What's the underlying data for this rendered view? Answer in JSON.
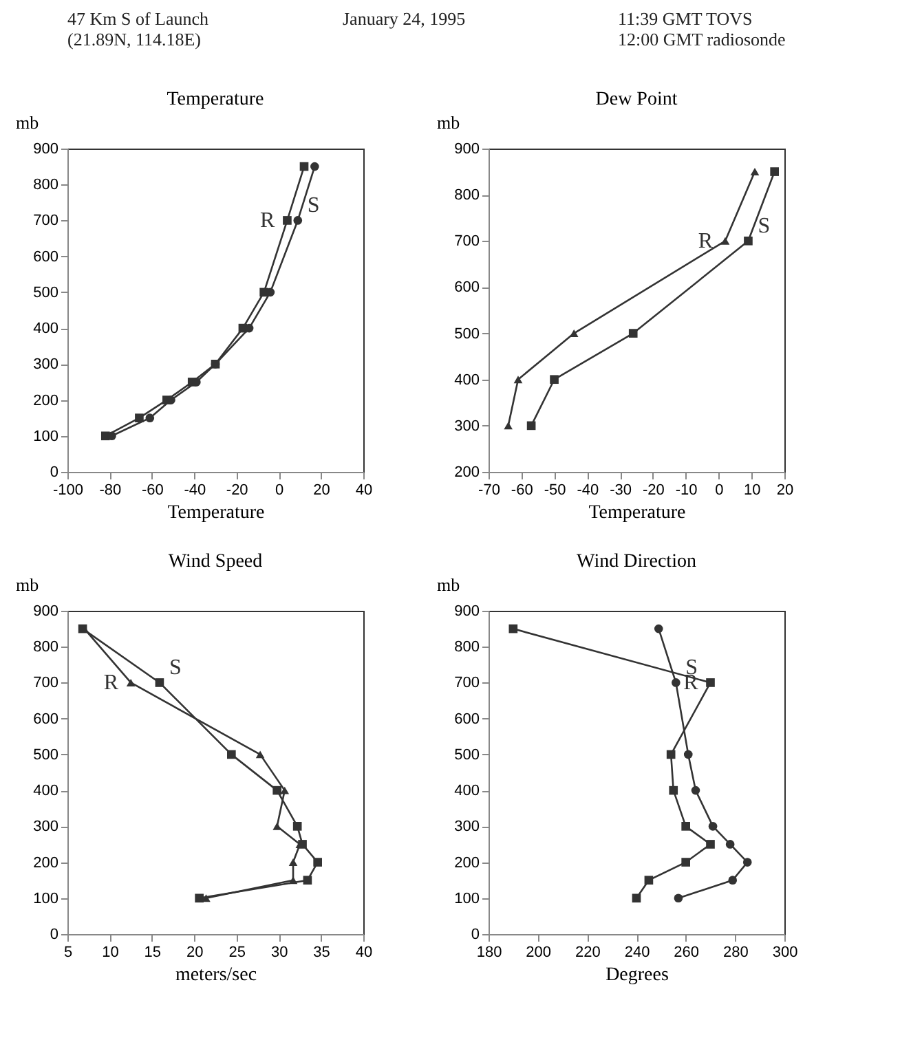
{
  "chart_data": [
    {
      "type": "line",
      "title": "Temperature",
      "xlabel": "Temperature",
      "ylabel": "mb",
      "annotations": [
        "47 Km S of Launch\n(21.89N, 114.18E)",
        "January 24, 1995",
        "11:39 GMT TOVS\n12:00 GMT radiosonde"
      ],
      "series": [
        {
          "name": "R",
          "color": "#333333",
          "marker": "square",
          "x": [
            12,
            4,
            -7,
            -17,
            -30,
            -41,
            -53,
            -66,
            -82
          ],
          "values": [
            850,
            700,
            500,
            400,
            300,
            250,
            200,
            150,
            100
          ]
        },
        {
          "name": "S",
          "color": "#333333",
          "marker": "circle",
          "x": [
            17,
            9,
            -4,
            -14,
            -30,
            -39,
            -51,
            -61,
            -79
          ],
          "values": [
            850,
            700,
            500,
            400,
            300,
            250,
            200,
            150,
            100
          ]
        }
      ],
      "xlim": [
        -100,
        40
      ],
      "xticks": [
        -100,
        -80,
        -60,
        -40,
        -20,
        0,
        20,
        40
      ],
      "ylim": [
        0,
        900
      ],
      "yticks": [
        0,
        100,
        200,
        300,
        400,
        500,
        600,
        700,
        800,
        900
      ],
      "grid": false
    },
    {
      "type": "line",
      "title": "Dew Point",
      "xlabel": "Temperature",
      "ylabel": "mb",
      "series": [
        {
          "name": "R",
          "color": "#333333",
          "marker": "triangle",
          "x": [
            11,
            2,
            -44,
            -61,
            -64
          ],
          "values": [
            850,
            700,
            500,
            400,
            300
          ]
        },
        {
          "name": "S",
          "color": "#333333",
          "marker": "square",
          "x": [
            17,
            9,
            -26,
            -50,
            -57
          ],
          "values": [
            850,
            700,
            500,
            400,
            300
          ]
        }
      ],
      "xlim": [
        -70,
        20
      ],
      "xticks": [
        -70,
        -60,
        -50,
        -40,
        -30,
        -20,
        -10,
        0,
        10,
        20
      ],
      "ylim": [
        200,
        900
      ],
      "yticks": [
        200,
        300,
        400,
        500,
        600,
        700,
        800,
        900
      ],
      "grid": false
    },
    {
      "type": "line",
      "title": "Wind Speed",
      "xlabel": "meters/sec",
      "ylabel": "mb",
      "series": [
        {
          "name": "R",
          "color": "#333333",
          "marker": "triangle",
          "x": [
            7,
            12.5,
            27.8,
            30.7,
            29.8,
            32.5,
            31.7,
            31.7,
            21.4
          ],
          "values": [
            850,
            700,
            500,
            400,
            300,
            250,
            200,
            150,
            100
          ]
        },
        {
          "name": "S",
          "color": "#333333",
          "marker": "square",
          "x": [
            6.8,
            15.9,
            24.4,
            29.8,
            32.2,
            32.8,
            34.6,
            33.4,
            20.6
          ],
          "values": [
            850,
            700,
            500,
            400,
            300,
            250,
            200,
            150,
            100
          ]
        }
      ],
      "xlim": [
        5,
        40
      ],
      "xticks": [
        5,
        10,
        15,
        20,
        25,
        30,
        35,
        40
      ],
      "ylim": [
        0,
        900
      ],
      "yticks": [
        0,
        100,
        200,
        300,
        400,
        500,
        600,
        700,
        800,
        900
      ],
      "grid": false
    },
    {
      "type": "line",
      "title": "Wind Direction",
      "xlabel": "Degrees",
      "ylabel": "mb",
      "series": [
        {
          "name": "R",
          "color": "#333333",
          "marker": "square",
          "x": [
            190,
            270,
            254,
            255,
            260,
            270,
            260,
            245,
            240
          ],
          "values": [
            850,
            700,
            500,
            400,
            300,
            250,
            200,
            150,
            100
          ]
        },
        {
          "name": "S",
          "color": "#333333",
          "marker": "circle",
          "x": [
            249,
            256,
            261,
            264,
            271,
            278,
            285,
            279,
            257
          ],
          "values": [
            850,
            700,
            500,
            400,
            300,
            250,
            200,
            150,
            100
          ]
        }
      ],
      "xlim": [
        180,
        300
      ],
      "xticks": [
        180,
        200,
        220,
        240,
        260,
        280,
        300
      ],
      "ylim": [
        0,
        900
      ],
      "yticks": [
        0,
        100,
        200,
        300,
        400,
        500,
        600,
        700,
        800,
        900
      ],
      "grid": false
    }
  ]
}
